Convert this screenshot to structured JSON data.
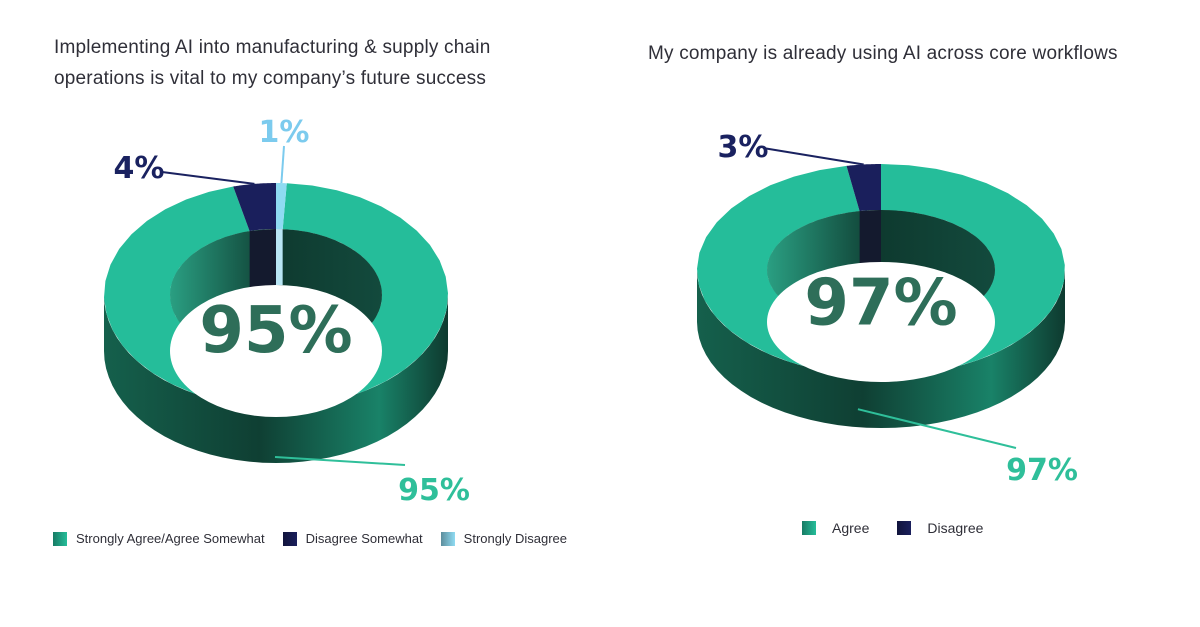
{
  "charts": [
    {
      "title_lines": [
        "Implementing AI into manufacturing & supply chain",
        "operations is vital to my company’s future success"
      ],
      "center_label": "95%",
      "legend": [
        {
          "label": "Strongly Agree/Agree Somewhat",
          "color": "#25bd9a"
        },
        {
          "label": "Disagree Somewhat",
          "color": "#1a1f5c"
        },
        {
          "label": "Strongly Disagree",
          "color": "#8fdbf2"
        }
      ]
    },
    {
      "title_lines": [
        "My company is already using AI across core workflows"
      ],
      "center_label": "97%",
      "legend": [
        {
          "label": "Agree",
          "color": "#25bd9a"
        },
        {
          "label": "Disagree",
          "color": "#1a1f5c"
        }
      ]
    }
  ],
  "chart_data": [
    {
      "type": "pie",
      "style": "3d-donut",
      "title": "Implementing AI into manufacturing & supply chain operations is vital to my company’s future success",
      "categories": [
        "Strongly Agree/Agree Somewhat",
        "Disagree Somewhat",
        "Strongly Disagree"
      ],
      "values": [
        95,
        4,
        1
      ],
      "data_labels": [
        "95%",
        "4%",
        "1%"
      ],
      "label_colors": [
        "#2fbf9a",
        "#1a2260",
        "#7ccbee"
      ],
      "colors": [
        "#25bd9a",
        "#1a1f5c",
        "#8fdbf2"
      ],
      "legend_position": "bottom"
    },
    {
      "type": "pie",
      "style": "3d-donut",
      "title": "My company is already using AI across core workflows",
      "categories": [
        "Agree",
        "Disagree"
      ],
      "values": [
        97,
        3
      ],
      "data_labels": [
        "97%",
        "3%"
      ],
      "label_colors": [
        "#2fbf9a",
        "#1a2260"
      ],
      "colors": [
        "#25bd9a",
        "#1a1f5c"
      ],
      "legend_position": "bottom"
    }
  ]
}
